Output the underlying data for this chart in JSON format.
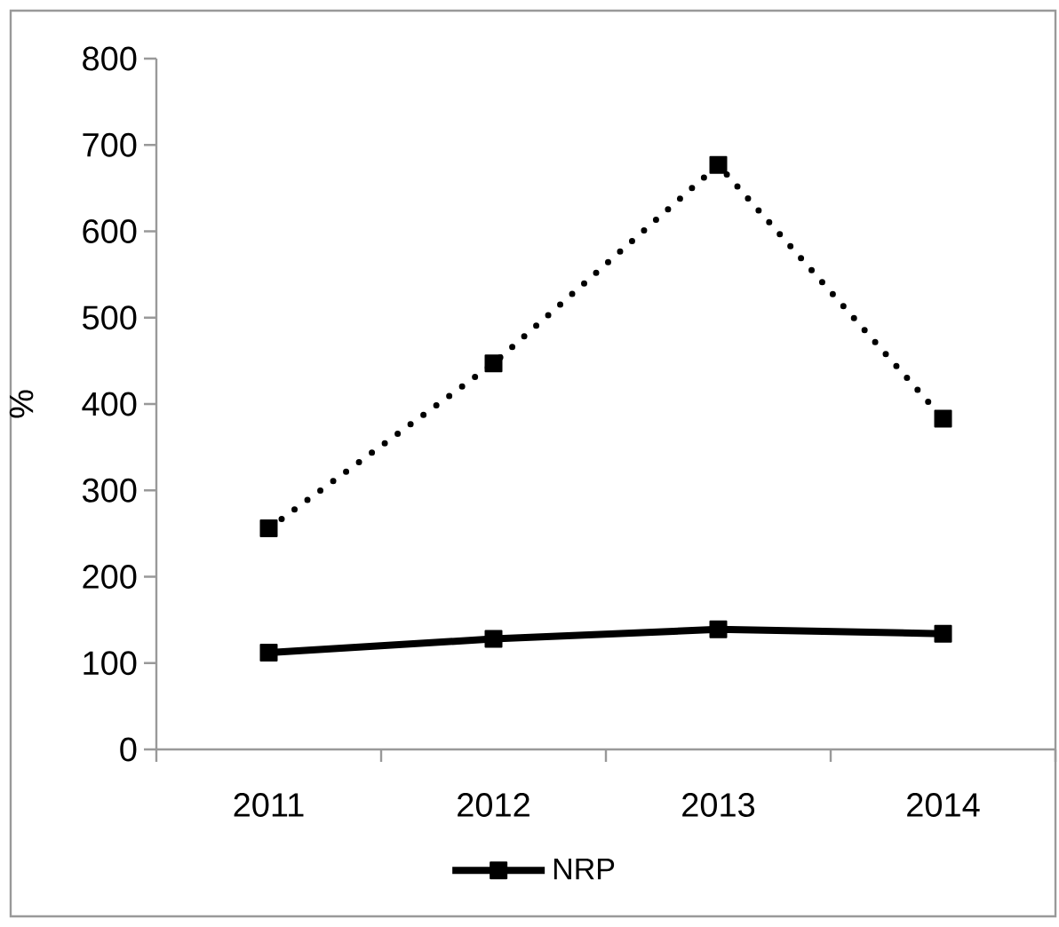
{
  "chart_data": {
    "type": "line",
    "ylabel": "%",
    "categories": [
      "2011",
      "2012",
      "2013",
      "2014"
    ],
    "series": [
      {
        "color": "#000000",
        "line_style": "dotted",
        "values": [
          256,
          447,
          677,
          383
        ]
      },
      {
        "name": "NRP",
        "color": "#000000",
        "line_style": "solid",
        "values": [
          112,
          128,
          139,
          134
        ]
      }
    ],
    "ylim": [
      0,
      800
    ],
    "yticks": [
      0,
      100,
      200,
      300,
      400,
      500,
      600,
      700,
      800
    ],
    "marker": "square",
    "legend": "bottom",
    "grid": false
  }
}
